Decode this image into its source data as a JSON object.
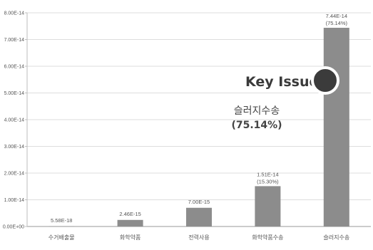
{
  "chart_data": {
    "type": "bar",
    "categories": [
      "수거배출물",
      "화학약품",
      "전력사용",
      "화학약품수송",
      "슬러지수송"
    ],
    "values": [
      5.58e-18,
      2.46e-15,
      7e-15,
      1.51e-14,
      7.44e-14
    ],
    "value_labels": [
      "5.58E-18",
      "2.46E-15",
      "7.00E-15",
      "1.51E-14",
      "7.44E-14"
    ],
    "percent_labels": [
      "",
      "",
      "",
      "(15.30%)",
      "(75.14%)"
    ],
    "y_ticks": [
      "0.00E+00",
      "1.00E-14",
      "2.00E-14",
      "3.00E-14",
      "4.00E-14",
      "5.00E-14",
      "6.00E-14",
      "7.00E-14",
      "8.00E-14"
    ],
    "ylim": [
      0,
      8e-14
    ],
    "grid": true,
    "bar_color": "#8c8c8c",
    "annotation": {
      "headline": "Key Issue",
      "line1": "슬러지수송",
      "line2": "(75.14%)",
      "circle_color": "#3a3a3a"
    }
  }
}
